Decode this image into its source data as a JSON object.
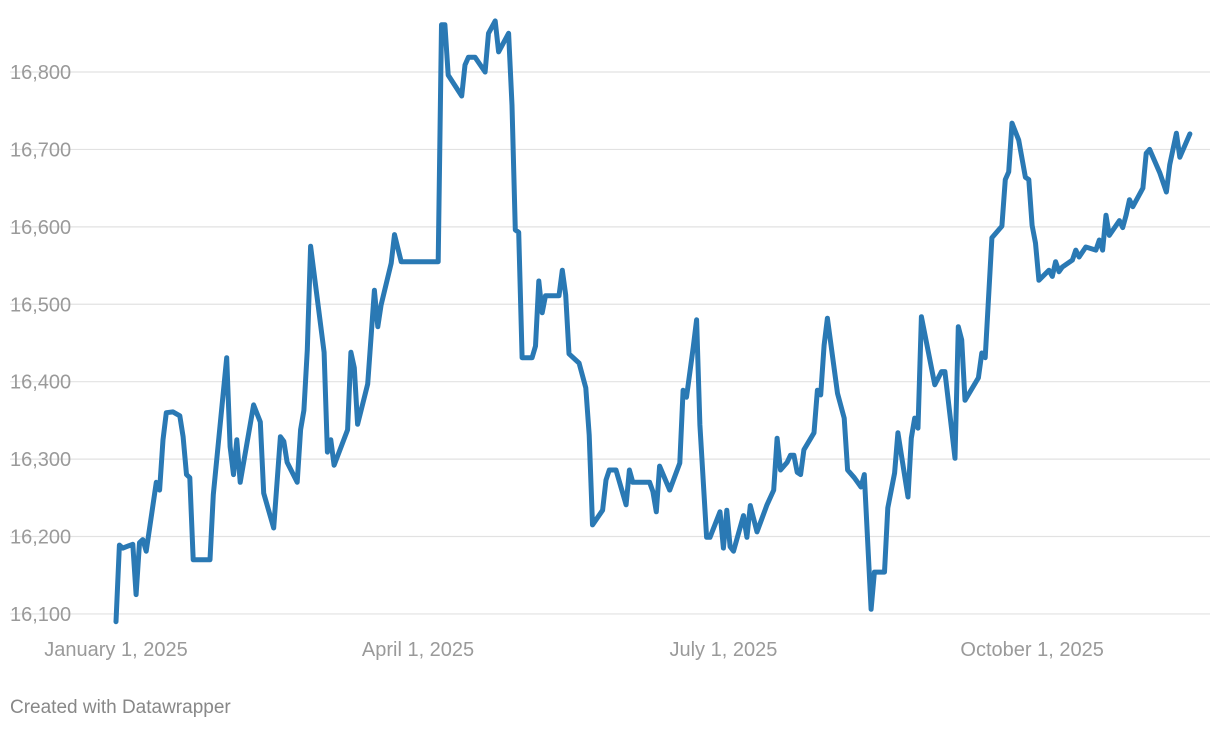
{
  "chart_data": {
    "type": "line",
    "footer": "Created with Datawrapper",
    "x": [
      "2025-01-01",
      "2025-01-02",
      "2025-01-03",
      "2025-01-06",
      "2025-01-07",
      "2025-01-08",
      "2025-01-09",
      "2025-01-10",
      "2025-01-13",
      "2025-01-14",
      "2025-01-15",
      "2025-01-16",
      "2025-01-18",
      "2025-01-20",
      "2025-01-21",
      "2025-01-22",
      "2025-01-23",
      "2025-01-24",
      "2025-01-29",
      "2025-01-30",
      "2025-02-03",
      "2025-02-04",
      "2025-02-05",
      "2025-02-06",
      "2025-02-07",
      "2025-02-11",
      "2025-02-13",
      "2025-02-14",
      "2025-02-17",
      "2025-02-19",
      "2025-02-20",
      "2025-02-21",
      "2025-02-24",
      "2025-02-25",
      "2025-02-26",
      "2025-02-27",
      "2025-02-28",
      "2025-03-04",
      "2025-03-05",
      "2025-03-06",
      "2025-03-07",
      "2025-03-11",
      "2025-03-12",
      "2025-03-13",
      "2025-03-14",
      "2025-03-17",
      "2025-03-19",
      "2025-03-20",
      "2025-03-21",
      "2025-03-24",
      "2025-03-25",
      "2025-03-27",
      "2025-04-07",
      "2025-04-08",
      "2025-04-09",
      "2025-04-10",
      "2025-04-14",
      "2025-04-15",
      "2025-04-16",
      "2025-04-18",
      "2025-04-21",
      "2025-04-22",
      "2025-04-24",
      "2025-04-25",
      "2025-04-28",
      "2025-04-29",
      "2025-04-30",
      "2025-05-01",
      "2025-05-02",
      "2025-05-05",
      "2025-05-06",
      "2025-05-07",
      "2025-05-08",
      "2025-05-09",
      "2025-05-13",
      "2025-05-14",
      "2025-05-15",
      "2025-05-16",
      "2025-05-19",
      "2025-05-21",
      "2025-05-22",
      "2025-05-23",
      "2025-05-26",
      "2025-05-27",
      "2025-05-28",
      "2025-05-30",
      "2025-06-02",
      "2025-06-03",
      "2025-06-04",
      "2025-06-09",
      "2025-06-10",
      "2025-06-11",
      "2025-06-12",
      "2025-06-15",
      "2025-06-18",
      "2025-06-19",
      "2025-06-20",
      "2025-06-22",
      "2025-06-23",
      "2025-06-24",
      "2025-06-26",
      "2025-06-27",
      "2025-06-30",
      "2025-07-01",
      "2025-07-02",
      "2025-07-03",
      "2025-07-04",
      "2025-07-07",
      "2025-07-08",
      "2025-07-09",
      "2025-07-11",
      "2025-07-14",
      "2025-07-16",
      "2025-07-17",
      "2025-07-18",
      "2025-07-20",
      "2025-07-21",
      "2025-07-22",
      "2025-07-23",
      "2025-07-24",
      "2025-07-25",
      "2025-07-28",
      "2025-07-29",
      "2025-07-30",
      "2025-07-31",
      "2025-08-01",
      "2025-08-04",
      "2025-08-06",
      "2025-08-07",
      "2025-08-09",
      "2025-08-11",
      "2025-08-12",
      "2025-08-14",
      "2025-08-15",
      "2025-08-18",
      "2025-08-19",
      "2025-08-21",
      "2025-08-22",
      "2025-08-25",
      "2025-08-26",
      "2025-08-27",
      "2025-08-28",
      "2025-08-29",
      "2025-09-02",
      "2025-09-04",
      "2025-09-05",
      "2025-09-08",
      "2025-09-09",
      "2025-09-10",
      "2025-09-11",
      "2025-09-15",
      "2025-09-16",
      "2025-09-17",
      "2025-09-19",
      "2025-09-22",
      "2025-09-23",
      "2025-09-24",
      "2025-09-25",
      "2025-09-27",
      "2025-09-29",
      "2025-09-30",
      "2025-10-01",
      "2025-10-02",
      "2025-10-03",
      "2025-10-06",
      "2025-10-07",
      "2025-10-08",
      "2025-10-09",
      "2025-10-10",
      "2025-10-13",
      "2025-10-14",
      "2025-10-15",
      "2025-10-17",
      "2025-10-20",
      "2025-10-21",
      "2025-10-22",
      "2025-10-23",
      "2025-10-24",
      "2025-10-27",
      "2025-10-28",
      "2025-10-29",
      "2025-10-30",
      "2025-10-31",
      "2025-11-03",
      "2025-11-04",
      "2025-11-05",
      "2025-11-08",
      "2025-11-10",
      "2025-11-11",
      "2025-11-13",
      "2025-11-14",
      "2025-11-17"
    ],
    "series": [
      {
        "color": "#2a79b4",
        "values": [
          16090,
          16189,
          16185,
          16190,
          16125,
          16192,
          16196,
          16181,
          16270,
          16260,
          16325,
          16360,
          16361,
          16356,
          16329,
          16280,
          16276,
          16170,
          16170,
          16254,
          16431,
          16316,
          16280,
          16325,
          16270,
          16370,
          16348,
          16256,
          16211,
          16329,
          16323,
          16296,
          16270,
          16338,
          16363,
          16441,
          16575,
          16438,
          16309,
          16325,
          16292,
          16338,
          16438,
          16418,
          16345,
          16397,
          16518,
          16471,
          16499,
          16553,
          16590,
          16555,
          16555,
          16861,
          16861,
          16796,
          16769,
          16809,
          16819,
          16819,
          16800,
          16850,
          16866,
          16826,
          16850,
          16757,
          16596,
          16593,
          16431,
          16431,
          16446,
          16530,
          16489,
          16511,
          16511,
          16544,
          16512,
          16436,
          16424,
          16392,
          16331,
          16215,
          16234,
          16273,
          16286,
          16286,
          16241,
          16286,
          16270,
          16270,
          16258,
          16232,
          16291,
          16260,
          16295,
          16389,
          16380,
          16444,
          16480,
          16344,
          16199,
          16199,
          16232,
          16185,
          16234,
          16187,
          16181,
          16227,
          16199,
          16240,
          16206,
          16241,
          16260,
          16327,
          16286,
          16296,
          16305,
          16305,
          16283,
          16280,
          16312,
          16334,
          16389,
          16383,
          16447,
          16482,
          16385,
          16353,
          16286,
          16276,
          16264,
          16280,
          16106,
          16154,
          16154,
          16237,
          16282,
          16334,
          16251,
          16327,
          16353,
          16340,
          16484,
          16396,
          16413,
          16413,
          16301,
          16471,
          16454,
          16376,
          16405,
          16437,
          16431,
          16586,
          16601,
          16661,
          16671,
          16734,
          16712,
          16664,
          16661,
          16602,
          16579,
          16531,
          16544,
          16536,
          16555,
          16542,
          16548,
          16557,
          16570,
          16561,
          16574,
          16570,
          16583,
          16570,
          16615,
          16589,
          16608,
          16599,
          16615,
          16635,
          16626,
          16650,
          16695,
          16700,
          16670,
          16645,
          16680,
          16721,
          16690,
          16720
        ]
      }
    ],
    "xlim": [
      "2025-01-01",
      "2025-11-23"
    ],
    "xticks": [
      {
        "value": "2025-01-01",
        "label": "January 1, 2025"
      },
      {
        "value": "2025-04-01",
        "label": "April 1, 2025"
      },
      {
        "value": "2025-07-01",
        "label": "July 1, 2025"
      },
      {
        "value": "2025-10-01",
        "label": "October 1, 2025"
      }
    ],
    "ylim": [
      16090,
      16870
    ],
    "yticks": [
      {
        "value": 16100,
        "label": "16,100"
      },
      {
        "value": 16200,
        "label": "16,200"
      },
      {
        "value": 16300,
        "label": "16,300"
      },
      {
        "value": 16400,
        "label": "16,400"
      },
      {
        "value": 16500,
        "label": "16,500"
      },
      {
        "value": 16600,
        "label": "16,600"
      },
      {
        "value": 16700,
        "label": "16,700"
      },
      {
        "value": 16800,
        "label": "16,800"
      }
    ],
    "grid": true
  }
}
